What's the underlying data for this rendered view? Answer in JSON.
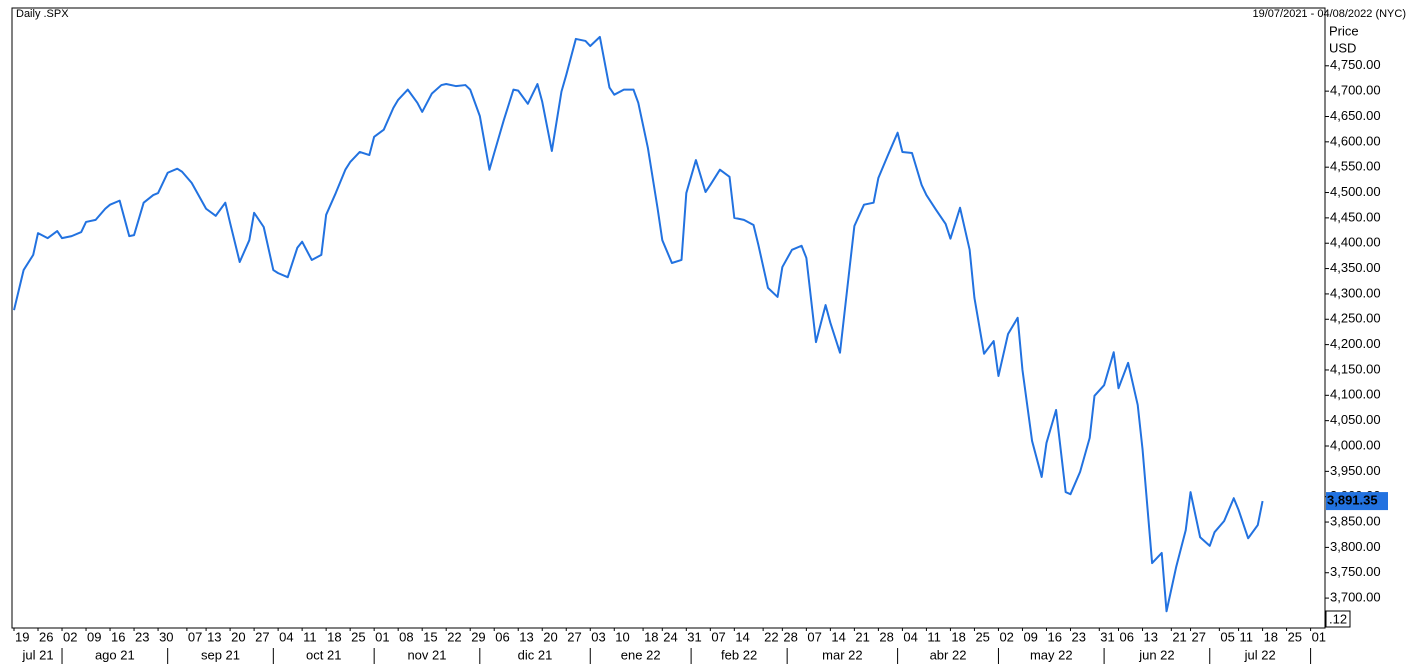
{
  "chart_data": {
    "type": "line",
    "title": "Daily .SPX",
    "subtitle": "19/07/2021 - 04/08/2022 (NYC)",
    "y_axis_label": "Price",
    "y_axis_unit": "USD",
    "last_price_label": "3,891.35",
    "axis_note": ".12",
    "series": [
      {
        "name": ".SPX",
        "color": "#2272e0",
        "x": [
          "2021-07-19",
          "2021-07-21",
          "2021-07-23",
          "2021-07-26",
          "2021-07-28",
          "2021-07-30",
          "2021-08-02",
          "2021-08-04",
          "2021-08-06",
          "2021-08-09",
          "2021-08-11",
          "2021-08-13",
          "2021-08-16",
          "2021-08-18",
          "2021-08-20",
          "2021-08-23",
          "2021-08-25",
          "2021-08-27",
          "2021-08-30",
          "2021-09-01",
          "2021-09-03",
          "2021-09-06",
          "2021-09-08",
          "2021-09-10",
          "2021-09-13",
          "2021-09-15",
          "2021-09-17",
          "2021-09-20",
          "2021-09-22",
          "2021-09-24",
          "2021-09-27",
          "2021-09-29",
          "2021-10-01",
          "2021-10-04",
          "2021-10-06",
          "2021-10-08",
          "2021-10-11",
          "2021-10-13",
          "2021-10-15",
          "2021-10-18",
          "2021-10-20",
          "2021-10-22",
          "2021-10-25",
          "2021-10-27",
          "2021-10-29",
          "2021-11-01",
          "2021-11-03",
          "2021-11-05",
          "2021-11-08",
          "2021-11-10",
          "2021-11-12",
          "2021-11-15",
          "2021-11-17",
          "2021-11-19",
          "2021-11-22",
          "2021-11-24",
          "2021-11-26",
          "2021-11-29",
          "2021-12-01",
          "2021-12-03",
          "2021-12-06",
          "2021-12-08",
          "2021-12-10",
          "2021-12-13",
          "2021-12-15",
          "2021-12-17",
          "2021-12-20",
          "2021-12-22",
          "2021-12-24",
          "2021-12-27",
          "2021-12-29",
          "2021-12-31",
          "2022-01-03",
          "2022-01-05",
          "2022-01-07",
          "2022-01-10",
          "2022-01-12",
          "2022-01-14",
          "2022-01-17",
          "2022-01-19",
          "2022-01-21",
          "2022-01-24",
          "2022-01-26",
          "2022-01-28",
          "2022-01-31",
          "2022-02-02",
          "2022-02-04",
          "2022-02-07",
          "2022-02-09",
          "2022-02-11",
          "2022-02-14",
          "2022-02-16",
          "2022-02-18",
          "2022-02-21",
          "2022-02-23",
          "2022-02-25",
          "2022-02-28",
          "2022-03-02",
          "2022-03-04",
          "2022-03-07",
          "2022-03-09",
          "2022-03-11",
          "2022-03-14",
          "2022-03-16",
          "2022-03-18",
          "2022-03-21",
          "2022-03-23",
          "2022-03-25",
          "2022-03-28",
          "2022-03-30",
          "2022-04-01",
          "2022-04-04",
          "2022-04-06",
          "2022-04-08",
          "2022-04-11",
          "2022-04-13",
          "2022-04-15",
          "2022-04-18",
          "2022-04-20",
          "2022-04-22",
          "2022-04-25",
          "2022-04-27",
          "2022-04-29",
          "2022-05-02",
          "2022-05-04",
          "2022-05-06",
          "2022-05-09",
          "2022-05-11",
          "2022-05-13",
          "2022-05-16",
          "2022-05-18",
          "2022-05-20",
          "2022-05-23",
          "2022-05-25",
          "2022-05-27",
          "2022-05-30",
          "2022-06-01",
          "2022-06-03",
          "2022-06-06",
          "2022-06-08",
          "2022-06-10",
          "2022-06-13",
          "2022-06-15",
          "2022-06-17",
          "2022-06-20",
          "2022-06-22",
          "2022-06-24",
          "2022-06-27",
          "2022-06-29",
          "2022-07-01",
          "2022-07-04",
          "2022-07-06",
          "2022-07-08",
          "2022-07-11",
          "2022-07-13",
          "2022-07-15",
          "2022-07-18"
        ],
        "values": [
          4268,
          4347,
          4377,
          4420,
          4410,
          4424,
          4410,
          4414,
          4422,
          4442,
          4446,
          4468,
          4476,
          4484,
          4414,
          4416,
          4480,
          4495,
          4499,
          4539,
          4547,
          4541,
          4519,
          4485,
          4468,
          4454,
          4480,
          4440,
          4363,
          4406,
          4460,
          4432,
          4347,
          4341,
          4333,
          4391,
          4403,
          4367,
          4377,
          4456,
          4499,
          4545,
          4560,
          4580,
          4574,
          4610,
          4624,
          4667,
          4683,
          4703,
          4677,
          4659,
          4695,
          4712,
          4714,
          4710,
          4712,
          4703,
          4651,
          4545,
          4578,
          4643,
          4703,
          4701,
          4675,
          4714,
          4679,
          4582,
          4699,
          4732,
          4803,
          4799,
          4789,
          4807,
          4707,
          4693,
          4703,
          4703,
          4677,
          4588,
          4470,
          4406,
          4361,
          4367,
          4499,
          4564,
          4501,
          4515,
          4545,
          4531,
          4450,
          4446,
          4436,
          4397,
          4312,
          4294,
          4353,
          4387,
          4395,
          4371,
          4205,
          4278,
          4243,
          4184,
          4351,
          4434,
          4476,
          4480,
          4529,
          4574,
          4618,
          4580,
          4578,
          4515,
          4495,
          4466,
          4438,
          4409,
          4470,
          4387,
          4292,
          4182,
          4207,
          4138,
          4221,
          4253,
          4150,
          4010,
          3939,
          4006,
          4071,
          3909,
          3905,
          3949,
          4016,
          4099,
          4120,
          4185,
          4114,
          4164,
          4081,
          3994,
          3769,
          3789,
          3674,
          3761,
          3834,
          3909,
          3820,
          3803,
          3830,
          3852,
          3897,
          3874,
          3818,
          3844,
          3891.35
        ]
      }
    ],
    "xlim": [
      "2021-07-19",
      "2022-08-04"
    ],
    "ylim": [
      3641,
      4864
    ],
    "yticks": [
      {
        "value": 3700,
        "label": "3,700.00"
      },
      {
        "value": 3750,
        "label": "3,750.00"
      },
      {
        "value": 3800,
        "label": "3,800.00"
      },
      {
        "value": 3850,
        "label": "3,850.00"
      },
      {
        "value": 3900,
        "label": "3,900.00"
      },
      {
        "value": 3950,
        "label": "3,950.00"
      },
      {
        "value": 4000,
        "label": "4,000.00"
      },
      {
        "value": 4050,
        "label": "4,050.00"
      },
      {
        "value": 4100,
        "label": "4,100.00"
      },
      {
        "value": 4150,
        "label": "4,150.00"
      },
      {
        "value": 4200,
        "label": "4,200.00"
      },
      {
        "value": 4250,
        "label": "4,250.00"
      },
      {
        "value": 4300,
        "label": "4,300.00"
      },
      {
        "value": 4350,
        "label": "4,350.00"
      },
      {
        "value": 4400,
        "label": "4,400.00"
      },
      {
        "value": 4450,
        "label": "4,450.00"
      },
      {
        "value": 4500,
        "label": "4,500.00"
      },
      {
        "value": 4550,
        "label": "4,550.00"
      },
      {
        "value": 4600,
        "label": "4,600.00"
      },
      {
        "value": 4650,
        "label": "4,650.00"
      },
      {
        "value": 4700,
        "label": "4,700.00"
      },
      {
        "value": 4750,
        "label": "4,750.00"
      }
    ],
    "xticks": [
      {
        "value": "2021-07-19",
        "label": "19"
      },
      {
        "value": "2021-07-26",
        "label": "26"
      },
      {
        "value": "2021-08-02",
        "label": "02"
      },
      {
        "value": "2021-08-09",
        "label": "09"
      },
      {
        "value": "2021-08-16",
        "label": "16"
      },
      {
        "value": "2021-08-23",
        "label": "23"
      },
      {
        "value": "2021-08-30",
        "label": "30"
      },
      {
        "value": "2021-09-07",
        "label": "07"
      },
      {
        "value": "2021-09-13",
        "label": "13"
      },
      {
        "value": "2021-09-20",
        "label": "20"
      },
      {
        "value": "2021-09-27",
        "label": "27"
      },
      {
        "value": "2021-10-04",
        "label": "04"
      },
      {
        "value": "2021-10-11",
        "label": "11"
      },
      {
        "value": "2021-10-18",
        "label": "18"
      },
      {
        "value": "2021-10-25",
        "label": "25"
      },
      {
        "value": "2021-11-01",
        "label": "01"
      },
      {
        "value": "2021-11-08",
        "label": "08"
      },
      {
        "value": "2021-11-15",
        "label": "15"
      },
      {
        "value": "2021-11-22",
        "label": "22"
      },
      {
        "value": "2021-11-29",
        "label": "29"
      },
      {
        "value": "2021-12-06",
        "label": "06"
      },
      {
        "value": "2021-12-13",
        "label": "13"
      },
      {
        "value": "2021-12-20",
        "label": "20"
      },
      {
        "value": "2021-12-27",
        "label": "27"
      },
      {
        "value": "2022-01-03",
        "label": "03"
      },
      {
        "value": "2022-01-10",
        "label": "10"
      },
      {
        "value": "2022-01-18",
        "label": "18"
      },
      {
        "value": "2022-01-24",
        "label": "24"
      },
      {
        "value": "2022-01-31",
        "label": "31"
      },
      {
        "value": "2022-02-07",
        "label": "07"
      },
      {
        "value": "2022-02-14",
        "label": "14"
      },
      {
        "value": "2022-02-22",
        "label": "22"
      },
      {
        "value": "2022-02-28",
        "label": "28"
      },
      {
        "value": "2022-03-07",
        "label": "07"
      },
      {
        "value": "2022-03-14",
        "label": "14"
      },
      {
        "value": "2022-03-21",
        "label": "21"
      },
      {
        "value": "2022-03-28",
        "label": "28"
      },
      {
        "value": "2022-04-04",
        "label": "04"
      },
      {
        "value": "2022-04-11",
        "label": "11"
      },
      {
        "value": "2022-04-18",
        "label": "18"
      },
      {
        "value": "2022-04-25",
        "label": "25"
      },
      {
        "value": "2022-05-02",
        "label": "02"
      },
      {
        "value": "2022-05-09",
        "label": "09"
      },
      {
        "value": "2022-05-16",
        "label": "16"
      },
      {
        "value": "2022-05-23",
        "label": "23"
      },
      {
        "value": "2022-05-31",
        "label": "31"
      },
      {
        "value": "2022-06-06",
        "label": "06"
      },
      {
        "value": "2022-06-13",
        "label": "13"
      },
      {
        "value": "2022-06-21",
        "label": "21"
      },
      {
        "value": "2022-06-27",
        "label": "27"
      },
      {
        "value": "2022-07-05",
        "label": "05"
      },
      {
        "value": "2022-07-11",
        "label": "11"
      },
      {
        "value": "2022-07-18",
        "label": "18"
      },
      {
        "value": "2022-07-25",
        "label": "25"
      },
      {
        "value": "2022-08-01",
        "label": "01"
      }
    ],
    "xmonths": [
      {
        "value": "2021-07",
        "label": "jul 21"
      },
      {
        "value": "2021-08",
        "label": "ago 21"
      },
      {
        "value": "2021-09",
        "label": "sep 21"
      },
      {
        "value": "2021-10",
        "label": "oct 21"
      },
      {
        "value": "2021-11",
        "label": "nov 21"
      },
      {
        "value": "2021-12",
        "label": "dic 21"
      },
      {
        "value": "2022-01",
        "label": "ene 22"
      },
      {
        "value": "2022-02",
        "label": "feb 22"
      },
      {
        "value": "2022-03",
        "label": "mar 22"
      },
      {
        "value": "2022-04",
        "label": "abr 22"
      },
      {
        "value": "2022-05",
        "label": "may 22"
      },
      {
        "value": "2022-06",
        "label": "jun 22"
      },
      {
        "value": "2022-07",
        "label": "jul 22"
      }
    ],
    "grid": false
  }
}
